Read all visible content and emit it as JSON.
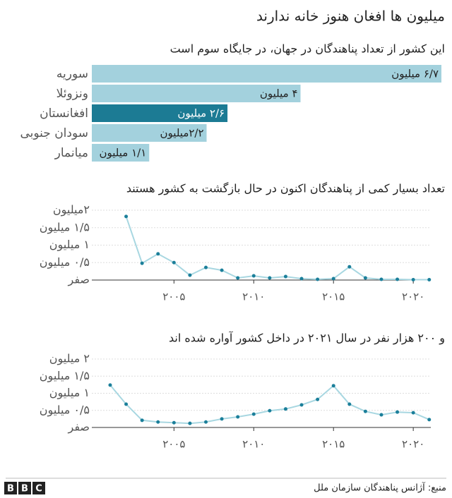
{
  "title": "میلیون ها افغان هنوز خانه ندارند",
  "source": "منبع: آژانس پناهندگان سازمان ملل",
  "logo": [
    "B",
    "B",
    "C"
  ],
  "chart_data": [
    {
      "type": "bar",
      "orientation": "horizontal",
      "title": "این کشور از تعداد پناهندگان در جهان، در جایگاه سوم است",
      "categories": [
        "سوریه",
        "ونزوئلا",
        "افغانستان",
        "سودان جنوبی",
        "میانمار"
      ],
      "values": [
        6.7,
        4,
        2.6,
        2.2,
        1.1
      ],
      "value_labels": [
        "۶/۷ میلیون",
        "۴ میلیون",
        "۲/۶ میلیون",
        "۲/۲میلیون",
        "۱/۱ میلیون"
      ],
      "colors": [
        "#a3d1dd",
        "#a3d1dd",
        "#1c7b94",
        "#a3d1dd",
        "#a3d1dd"
      ]
    },
    {
      "type": "line",
      "title": "تعداد بسیار کمی از پناهندگان اکنون در حال بازگشت به کشور هستند",
      "x": [
        2002,
        2003,
        2004,
        2005,
        2006,
        2007,
        2008,
        2009,
        2010,
        2011,
        2012,
        2013,
        2014,
        2015,
        2016,
        2017,
        2018,
        2019,
        2020,
        2021
      ],
      "series": [
        {
          "color": "#a8d7e1",
          "marker_color": "#1b7f9a",
          "values": [
            1.82,
            0.48,
            0.75,
            0.5,
            0.14,
            0.36,
            0.28,
            0.06,
            0.12,
            0.06,
            0.1,
            0.04,
            0.02,
            0.04,
            0.38,
            0.06,
            0.02,
            0.02,
            0.01,
            0.01
          ]
        }
      ],
      "xlim": [
        1999.85,
        2021.1
      ],
      "xticks": [
        {
          "value": 2005,
          "label": "۲۰۰۵"
        },
        {
          "value": 2010,
          "label": "۲۰۱۰"
        },
        {
          "value": 2015,
          "label": "۲۰۱۵"
        },
        {
          "value": 2020,
          "label": "۲۰۲۰"
        }
      ],
      "ylim": [
        0,
        2
      ],
      "yticks": [
        {
          "value": 0,
          "label": "صفر"
        },
        {
          "value": 0.5,
          "label": "۰/۵ میلیون"
        },
        {
          "value": 1,
          "label": "۱ میلیون"
        },
        {
          "value": 1.5,
          "label": "۱/۵ میلیون"
        },
        {
          "value": 2,
          "label": "۲میلیون"
        }
      ],
      "grid": true
    },
    {
      "type": "line",
      "title": "و ۲۰۰ هزار نفر در سال ۲۰۲۱ در داخل کشور آواره شده اند",
      "x": [
        2001,
        2002,
        2003,
        2004,
        2005,
        2006,
        2007,
        2008,
        2009,
        2010,
        2011,
        2012,
        2013,
        2014,
        2015,
        2016,
        2017,
        2018,
        2019,
        2020,
        2021
      ],
      "series": [
        {
          "color": "#a8d7e1",
          "marker_color": "#1b7f9a",
          "values": [
            1.24,
            0.68,
            0.21,
            0.16,
            0.14,
            0.12,
            0.16,
            0.25,
            0.31,
            0.39,
            0.49,
            0.54,
            0.66,
            0.82,
            1.22,
            0.68,
            0.47,
            0.37,
            0.45,
            0.43,
            0.23
          ]
        }
      ],
      "xlim": [
        1999.85,
        2021.1
      ],
      "xticks": [
        {
          "value": 2005,
          "label": "۲۰۰۵"
        },
        {
          "value": 2010,
          "label": "۲۰۱۰"
        },
        {
          "value": 2015,
          "label": "۲۰۱۵"
        },
        {
          "value": 2020,
          "label": "۲۰۲۰"
        }
      ],
      "ylim": [
        0,
        2
      ],
      "yticks": [
        {
          "value": 0,
          "label": "صفر"
        },
        {
          "value": 0.5,
          "label": "۰/۵ میلیون"
        },
        {
          "value": 1,
          "label": "۱ میلیون"
        },
        {
          "value": 1.5,
          "label": "۱/۵ میلیون"
        },
        {
          "value": 2,
          "label": "۲ میلیون"
        }
      ],
      "grid": true
    }
  ]
}
